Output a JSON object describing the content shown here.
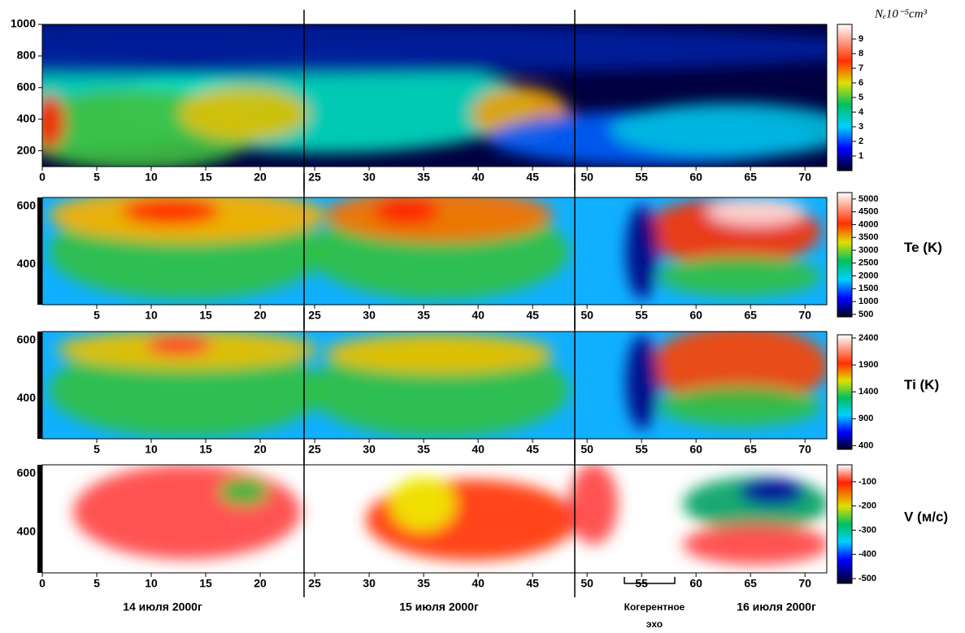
{
  "chart_data": [
    {
      "type": "heatmap",
      "xlim": [
        0,
        72
      ],
      "ylim": [
        100,
        1000
      ],
      "xticks": [
        0,
        5,
        10,
        15,
        20,
        25,
        30,
        35,
        40,
        45,
        50,
        55,
        60,
        65,
        70
      ],
      "yticks": [
        200,
        400,
        600,
        800,
        1000
      ],
      "colorbar": {
        "label": "Nₑ10⁻⁵cm³",
        "lim": [
          0,
          10
        ],
        "ticks": [
          1,
          2,
          3,
          4,
          5,
          6,
          7,
          8,
          9
        ]
      }
    },
    {
      "type": "heatmap",
      "xlim": [
        0,
        72
      ],
      "ylim": [
        260,
        630
      ],
      "xticks": [
        5,
        10,
        15,
        20,
        25,
        30,
        35,
        40,
        45,
        50,
        55,
        60,
        65,
        70
      ],
      "yticks": [
        400,
        600
      ],
      "colorbar": {
        "label": "Te (K)",
        "lim": [
          400,
          5250
        ],
        "ticks": [
          500,
          1000,
          1500,
          2000,
          2500,
          3000,
          3500,
          4000,
          4500,
          5000
        ]
      }
    },
    {
      "type": "heatmap",
      "xlim": [
        0,
        72
      ],
      "ylim": [
        260,
        630
      ],
      "xticks": [
        5,
        10,
        15,
        20,
        25,
        30,
        35,
        40,
        45,
        50,
        55,
        60,
        65,
        70
      ],
      "yticks": [
        400,
        600
      ],
      "colorbar": {
        "label": "Ti (K)",
        "lim": [
          330,
          2460
        ],
        "ticks": [
          400,
          900,
          1400,
          1900,
          2400
        ]
      }
    },
    {
      "type": "heatmap",
      "xlim": [
        0,
        72
      ],
      "ylim": [
        260,
        630
      ],
      "xticks": [
        0,
        5,
        10,
        15,
        20,
        25,
        30,
        35,
        40,
        45,
        50,
        55,
        60,
        65,
        70
      ],
      "yticks": [
        400,
        600
      ],
      "colorbar": {
        "label": "V (м/с)",
        "lim": [
          -520,
          -30
        ],
        "ticks": [
          -100,
          -200,
          -300,
          -400,
          -500
        ]
      }
    }
  ],
  "day_labels": [
    "14 июля 2000г",
    "15 июля 2000г",
    "16 июля 2000г"
  ],
  "annotation": [
    "Когерентное",
    "эхо"
  ]
}
